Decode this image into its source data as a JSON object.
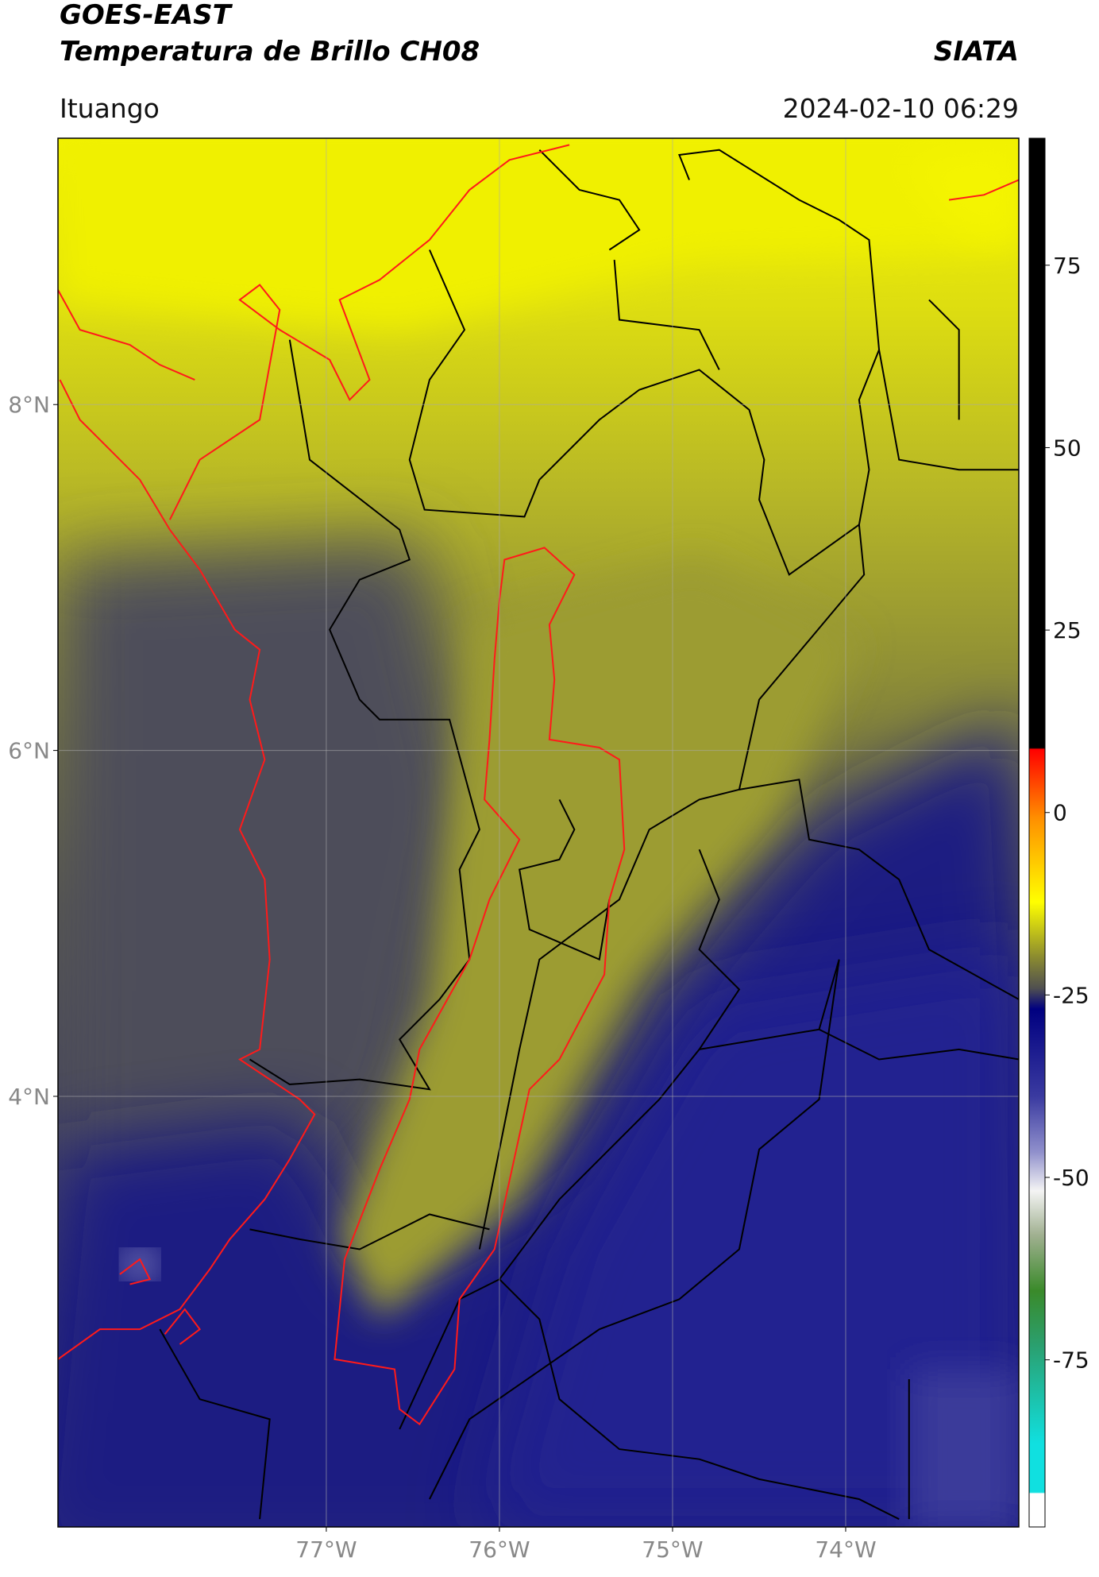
{
  "header": {
    "title": "GOES-EAST",
    "subtitle": "Temperatura de Brillo CH08",
    "org": "SIATA",
    "location": "Ituango",
    "datetime": "2024-02-10 06:29"
  },
  "map": {
    "xlim": [
      -78.55,
      -73.0
    ],
    "ylim": [
      1.51,
      9.54
    ],
    "xticks": [
      {
        "value": -77,
        "label": "77°W"
      },
      {
        "value": -76,
        "label": "76°W"
      },
      {
        "value": -75,
        "label": "75°W"
      },
      {
        "value": -74,
        "label": "74°W"
      }
    ],
    "yticks": [
      {
        "value": 8,
        "label": "8°N"
      },
      {
        "value": 6,
        "label": "6°N"
      },
      {
        "value": 4,
        "label": "4°N"
      }
    ],
    "grid": true
  },
  "colorbar": {
    "lim": [
      -97.9,
      92.4
    ],
    "ticks": [
      75,
      50,
      25,
      0,
      -25,
      -50,
      -75
    ]
  }
}
